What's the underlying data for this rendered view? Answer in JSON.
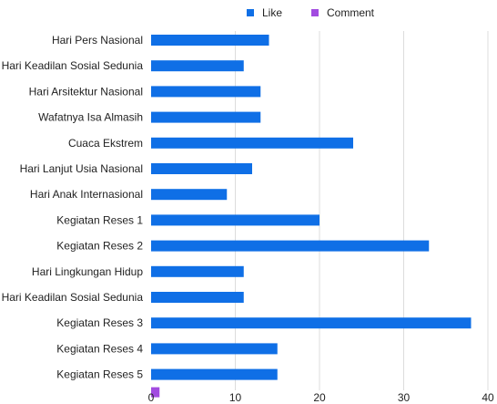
{
  "chart_data": {
    "type": "bar",
    "orientation": "horizontal",
    "categories": [
      "Hari Pers Nasional",
      "Hari Keadilan Sosial Sedunia",
      "Hari Arsitektur Nasional",
      "Wafatnya Isa Almasih",
      "Cuaca Ekstrem",
      "Hari Lanjut Usia Nasional",
      "Hari Anak Internasional",
      "Kegiatan Reses 1",
      "Kegiatan Reses 2",
      "Hari Lingkungan Hidup",
      "Hari Keadilan Sosial Sedunia",
      "Kegiatan Reses 3",
      "Kegiatan Reses 4",
      "Kegiatan Reses 5"
    ],
    "series": [
      {
        "name": "Like",
        "color": "#0f6fe6",
        "values": [
          14,
          11,
          13,
          13,
          24,
          12,
          9,
          20,
          33,
          11,
          11,
          38,
          15,
          15
        ]
      },
      {
        "name": "Comment",
        "color": "#a24be0",
        "values": [
          0,
          0,
          0,
          0,
          0,
          0,
          0,
          0,
          0,
          0,
          0,
          0,
          0,
          1
        ]
      }
    ],
    "xlim": [
      0,
      40
    ],
    "xticks": [
      0,
      10,
      20,
      30,
      40
    ],
    "grid": "vertical",
    "legend_position": "top"
  }
}
